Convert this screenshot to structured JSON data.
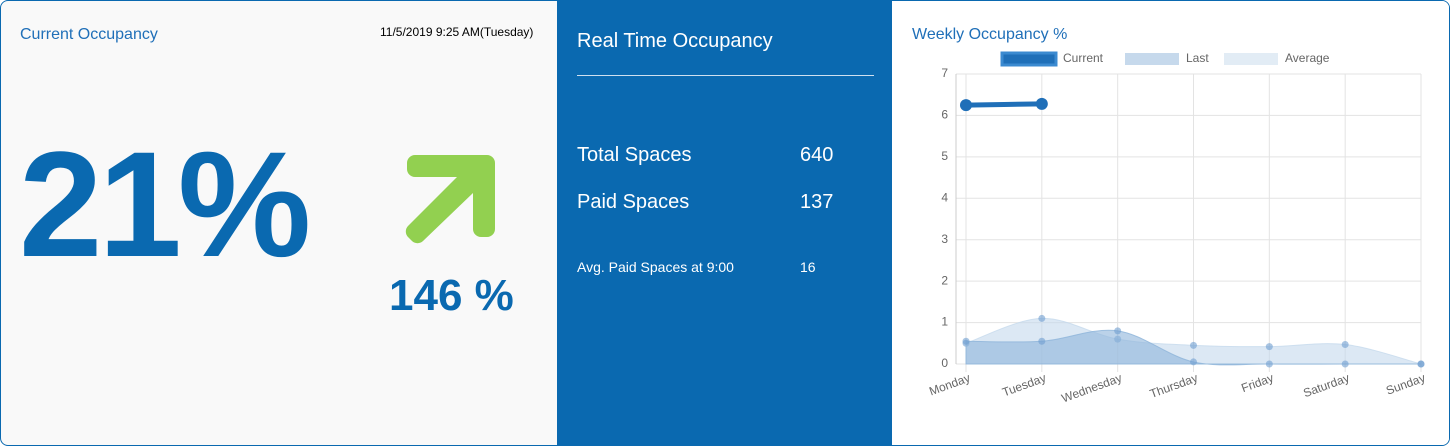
{
  "current": {
    "title": "Current Occupancy",
    "timestamp": "11/5/2019 9:25 AM(Tuesday)",
    "percent": "21%",
    "change": "146 %"
  },
  "realtime": {
    "title": "Real Time Occupancy",
    "rows": [
      [
        "Total Spaces",
        640
      ],
      [
        "Paid Spaces",
        137
      ],
      [
        "Avg. Paid Spaces at 9:00",
        16
      ]
    ]
  },
  "chart_data": {
    "type": "line",
    "title": "Weekly Occupancy %",
    "categories": [
      "Monday",
      "Tuesday",
      "Wednesday",
      "Thursday",
      "Friday",
      "Saturday",
      "Sunday"
    ],
    "series": [
      {
        "name": "Current",
        "color": "#1f6fb8",
        "values": [
          6.25,
          6.28,
          null,
          null,
          null,
          null,
          null
        ]
      },
      {
        "name": "Last",
        "color": "#8db4da",
        "values": [
          0.55,
          0.55,
          0.8,
          0.05,
          0,
          0,
          0
        ]
      },
      {
        "name": "Average",
        "color": "#c5d9ec",
        "values": [
          0.5,
          1.1,
          0.6,
          0.45,
          0.42,
          0.47,
          0
        ]
      }
    ],
    "ylim": [
      0,
      7
    ],
    "yticks": [
      0,
      1,
      2,
      3,
      4,
      5,
      6,
      7
    ],
    "grid": true,
    "legend": "top"
  }
}
